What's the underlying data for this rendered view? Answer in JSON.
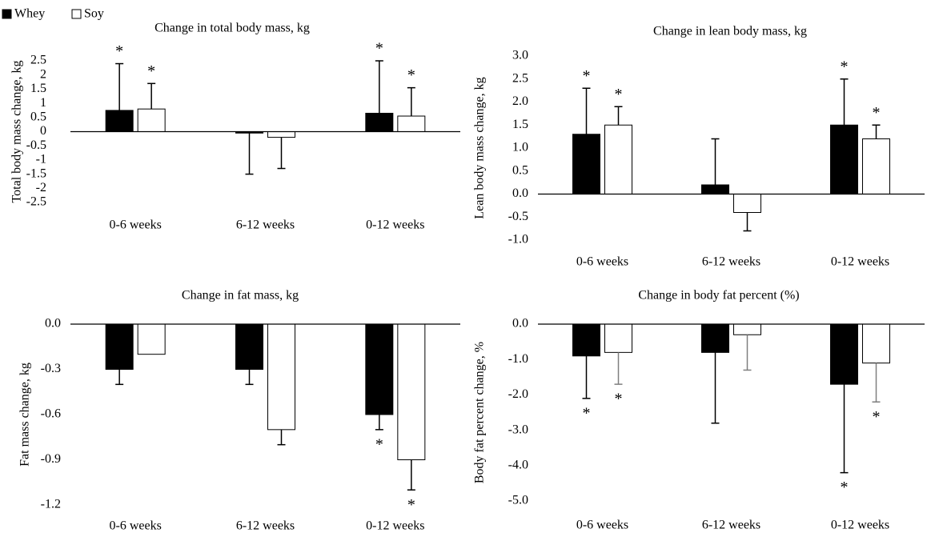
{
  "chart_data": [
    {
      "type": "bar",
      "title": "Change in total body mass, kg",
      "y_label": "Total body mass change, kg",
      "categories": [
        "0-6 weeks",
        "6-12 weeks",
        "0-12 weeks"
      ],
      "series": [
        {
          "name": "Whey",
          "color": "#000000",
          "values": [
            0.75,
            -0.05,
            0.65
          ],
          "errors": [
            1.65,
            1.45,
            1.85
          ],
          "annotations": [
            "*",
            null,
            "*"
          ]
        },
        {
          "name": "Soy",
          "color": "#ffffff",
          "values": [
            0.8,
            -0.2,
            0.55
          ],
          "errors": [
            0.9,
            1.1,
            1.0
          ],
          "annotations": [
            "*",
            null,
            "*"
          ]
        }
      ],
      "ylim": [
        -2.5,
        2.5
      ],
      "yticks": [
        -2.5,
        -2,
        -1.5,
        -1,
        -0.5,
        0,
        0.5,
        1,
        1.5,
        2,
        2.5
      ]
    },
    {
      "type": "bar",
      "title": "Change in lean body mass, kg",
      "y_label": "Lean body mass change, kg",
      "categories": [
        "0-6 weeks",
        "6-12 weeks",
        "0-12 weeks"
      ],
      "series": [
        {
          "color": "#000000",
          "values": [
            1.3,
            0.2,
            1.5
          ],
          "errors": [
            1.0,
            1.0,
            1.0
          ],
          "annotations": [
            "*",
            null,
            "*"
          ]
        },
        {
          "color": "#ffffff",
          "values": [
            1.5,
            -0.4,
            1.2
          ],
          "errors": [
            0.4,
            0.4,
            0.3
          ],
          "annotations": [
            "*",
            null,
            "*"
          ]
        }
      ],
      "ylim": [
        -1,
        3
      ],
      "yticks": [
        {
          "value": -1,
          "label": "-1.0"
        },
        {
          "value": -0.5,
          "label": "-0.5"
        },
        {
          "value": 0,
          "label": "0.0"
        },
        {
          "value": 0.5,
          "label": "0.5"
        },
        {
          "value": 1,
          "label": "1.0"
        },
        {
          "value": 1.5,
          "label": "1.5"
        },
        {
          "value": 2,
          "label": "2.0"
        },
        {
          "value": 2.5,
          "label": "2.5"
        },
        {
          "value": 3,
          "label": "3.0"
        }
      ]
    },
    {
      "type": "bar",
      "title": "Change in fat mass, kg",
      "y_label": "Fat mass change, kg",
      "categories": [
        "0-6 weeks",
        "6-12 weeks",
        "0-12 weeks"
      ],
      "series": [
        {
          "color": "#000000",
          "values": [
            -0.3,
            -0.3,
            -0.6
          ],
          "errors": [
            0.1,
            0.1,
            0.1
          ],
          "annotations": [
            null,
            null,
            "*"
          ]
        },
        {
          "color": "#ffffff",
          "values": [
            -0.2,
            -0.7,
            -0.9
          ],
          "errors": [
            null,
            0.1,
            0.2
          ],
          "annotations": [
            null,
            null,
            "*"
          ]
        }
      ],
      "ylim": [
        -1.2,
        0
      ],
      "yticks": [
        {
          "value": -1.2,
          "label": "-1.2"
        },
        {
          "value": -0.9,
          "label": "-0.9"
        },
        {
          "value": -0.6,
          "label": "-0.6"
        },
        {
          "value": -0.3,
          "label": "-0.3"
        },
        {
          "value": 0,
          "label": "0.0"
        }
      ]
    },
    {
      "type": "bar",
      "title": "Change in body fat percent (%)",
      "y_label": "Body fat percent change, %",
      "categories": [
        "0-6 weeks",
        "6-12 weeks",
        "0-12 weeks"
      ],
      "series": [
        {
          "color": "#000000",
          "values": [
            -0.9,
            -0.8,
            -1.7
          ],
          "errors": [
            1.2,
            2.0,
            2.5
          ],
          "annotations": [
            "*",
            null,
            "*"
          ]
        },
        {
          "color": "#ffffff",
          "error_color": "#7f7f7f",
          "values": [
            -0.8,
            -0.3,
            -1.1
          ],
          "errors": [
            0.9,
            1.0,
            1.1
          ],
          "annotations": [
            "*",
            null,
            "*"
          ]
        }
      ],
      "ylim": [
        -5,
        0
      ],
      "yticks": [
        {
          "value": -5,
          "label": "-5.0"
        },
        {
          "value": -4,
          "label": "-4.0"
        },
        {
          "value": -3,
          "label": "-3.0"
        },
        {
          "value": -2,
          "label": "-2.0"
        },
        {
          "value": -1,
          "label": "-1.0"
        },
        {
          "value": 0,
          "label": "0.0"
        }
      ]
    }
  ]
}
